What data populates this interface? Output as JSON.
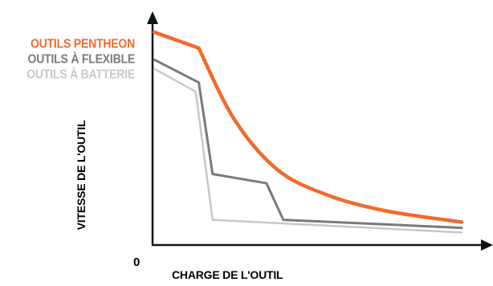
{
  "chart_data": {
    "type": "line",
    "xlabel": "CHARGE DE L'OUTIL",
    "ylabel": "VITESSE DE L'OUTIL",
    "origin_label": "0",
    "legend_position": "top-left",
    "grid": false,
    "xlim": [
      0,
      100
    ],
    "ylim": [
      0,
      100
    ],
    "series": [
      {
        "name": "OUTILS PENTHEON",
        "color": "#f26a2c",
        "x": [
          0,
          14.5,
          26,
          40,
          56,
          75,
          100
        ],
        "y": [
          93,
          86,
          55,
          33,
          22,
          15,
          10
        ]
      },
      {
        "name": "OUTILS À FLEXIBLE",
        "color": "#7a7a7a",
        "x": [
          0,
          14.5,
          19,
          36.5,
          42,
          100
        ],
        "y": [
          81,
          71,
          31,
          27,
          11,
          7.5
        ]
      },
      {
        "name": "OUTILS À BATTERIE",
        "color": "#c8c8c8",
        "x": [
          0,
          13.5,
          19,
          100
        ],
        "y": [
          77,
          67,
          11,
          5.5
        ]
      }
    ]
  }
}
